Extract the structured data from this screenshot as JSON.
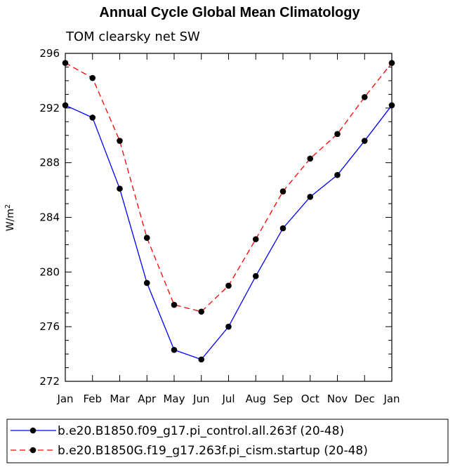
{
  "chart_data": {
    "type": "line",
    "title": "Annual Cycle Global Mean Climatology",
    "subtitle": "TOM clearsky net SW",
    "xlabel": "",
    "ylabel": "W/m",
    "ylabel_superscript": "2",
    "categories": [
      "Jan",
      "Feb",
      "Mar",
      "Apr",
      "May",
      "Jun",
      "Jul",
      "Aug",
      "Sep",
      "Oct",
      "Nov",
      "Dec",
      "Jan"
    ],
    "ylim": [
      272,
      296
    ],
    "yticks": [
      272,
      276,
      280,
      284,
      288,
      292,
      296
    ],
    "series": [
      {
        "name": "b.e20.B1850.f09_g17.pi_control.all.263f (20-48)",
        "color": "#0000ff",
        "dash": "solid",
        "values": [
          292.2,
          291.3,
          286.1,
          279.2,
          274.3,
          273.6,
          276.0,
          279.7,
          283.2,
          285.5,
          287.1,
          289.6,
          292.2
        ]
      },
      {
        "name": "b.e20.B1850G.f19_g17.263f.pi_cism.startup (20-48)",
        "color": "#ff0000",
        "dash": "dashed",
        "values": [
          295.3,
          294.2,
          289.6,
          282.5,
          277.6,
          277.1,
          279.0,
          282.4,
          285.9,
          288.3,
          290.1,
          292.8,
          295.3
        ]
      }
    ],
    "grid": false,
    "legend_position": "bottom"
  }
}
